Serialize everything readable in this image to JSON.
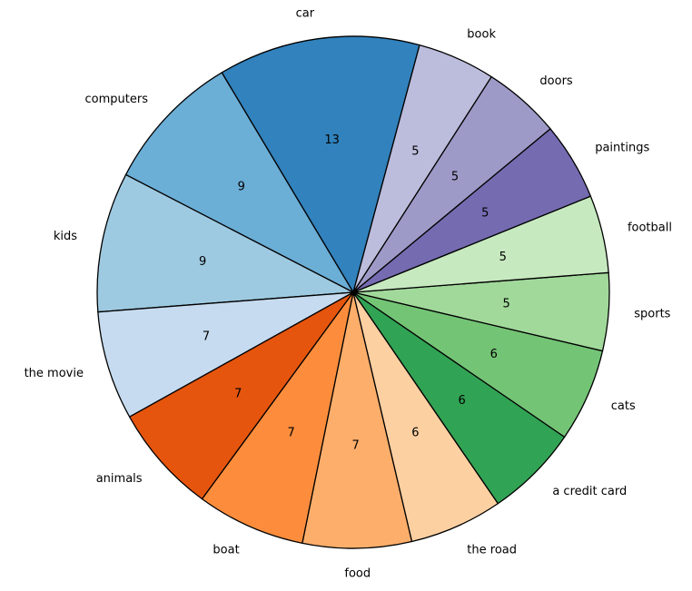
{
  "chart_data": {
    "type": "pie",
    "title": "",
    "start_angle_deg": 75,
    "direction": "counterclockwise",
    "edge_color": "#000000",
    "slices": [
      {
        "label": "car",
        "value": 13,
        "color": "#3182bd"
      },
      {
        "label": "computers",
        "value": 9,
        "color": "#6baed6"
      },
      {
        "label": "kids",
        "value": 9,
        "color": "#9ecae1"
      },
      {
        "label": "the movie",
        "value": 7,
        "color": "#c6dbef"
      },
      {
        "label": "animals",
        "value": 7,
        "color": "#e6550d"
      },
      {
        "label": "boat",
        "value": 7,
        "color": "#fd8d3c"
      },
      {
        "label": "food",
        "value": 7,
        "color": "#fdae6b"
      },
      {
        "label": "the road",
        "value": 6,
        "color": "#fdd0a2"
      },
      {
        "label": "a credit card",
        "value": 6,
        "color": "#31a354"
      },
      {
        "label": "cats",
        "value": 6,
        "color": "#74c476"
      },
      {
        "label": "sports",
        "value": 5,
        "color": "#a1d99b"
      },
      {
        "label": "football",
        "value": 5,
        "color": "#c7e9c0"
      },
      {
        "label": "paintings",
        "value": 5,
        "color": "#756bb1"
      },
      {
        "label": "doors",
        "value": 5,
        "color": "#9e9ac8"
      },
      {
        "label": "book",
        "value": 5,
        "color": "#bcbddc"
      }
    ]
  }
}
